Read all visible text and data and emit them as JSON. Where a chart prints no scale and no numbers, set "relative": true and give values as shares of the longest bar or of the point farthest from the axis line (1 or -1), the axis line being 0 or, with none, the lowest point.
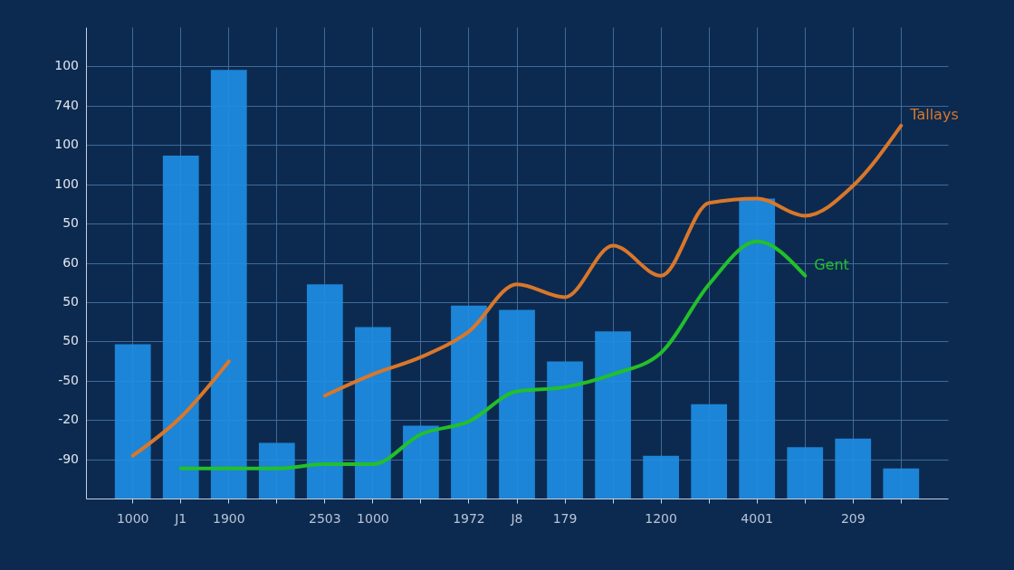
{
  "chart_data": {
    "type": "bar",
    "relative": true,
    "categories": [
      "1000",
      "J1",
      "1900",
      null,
      "2503",
      "1000",
      null,
      "1972",
      "J8",
      "179",
      null,
      "1200",
      null,
      "4001",
      null,
      "209",
      null
    ],
    "grid": true,
    "annotations": [
      "100",
      "740",
      "100",
      "100",
      "50",
      "60",
      "50",
      "50",
      "-50",
      "-20",
      "-90"
    ],
    "series": [
      {
        "color": "#1e8fe6",
        "values": [
          0.36,
          0.8,
          1,
          0.13,
          0.5,
          0.4,
          0.17,
          0.45,
          0.44,
          0.32,
          0.39,
          0.1,
          0.22,
          0.7,
          0.12,
          0.14,
          0.07
        ]
      },
      {
        "type": "line",
        "name": "Tallays",
        "color": "#d9772a",
        "values": [
          0.1,
          0.19,
          0.32,
          null,
          0.24,
          0.29,
          0.33,
          0.39,
          0.5,
          0.47,
          0.59,
          0.52,
          0.69,
          0.7,
          0.66,
          0.73,
          0.87
        ]
      },
      {
        "type": "line",
        "name": "Gent",
        "color": "#22c02a",
        "values": [
          null,
          0.07,
          0.07,
          0.07,
          0.08,
          0.08,
          0.15,
          0.18,
          0.25,
          0.26,
          0.29,
          0.34,
          0.5,
          0.6,
          0.52,
          null,
          null
        ]
      }
    ]
  }
}
